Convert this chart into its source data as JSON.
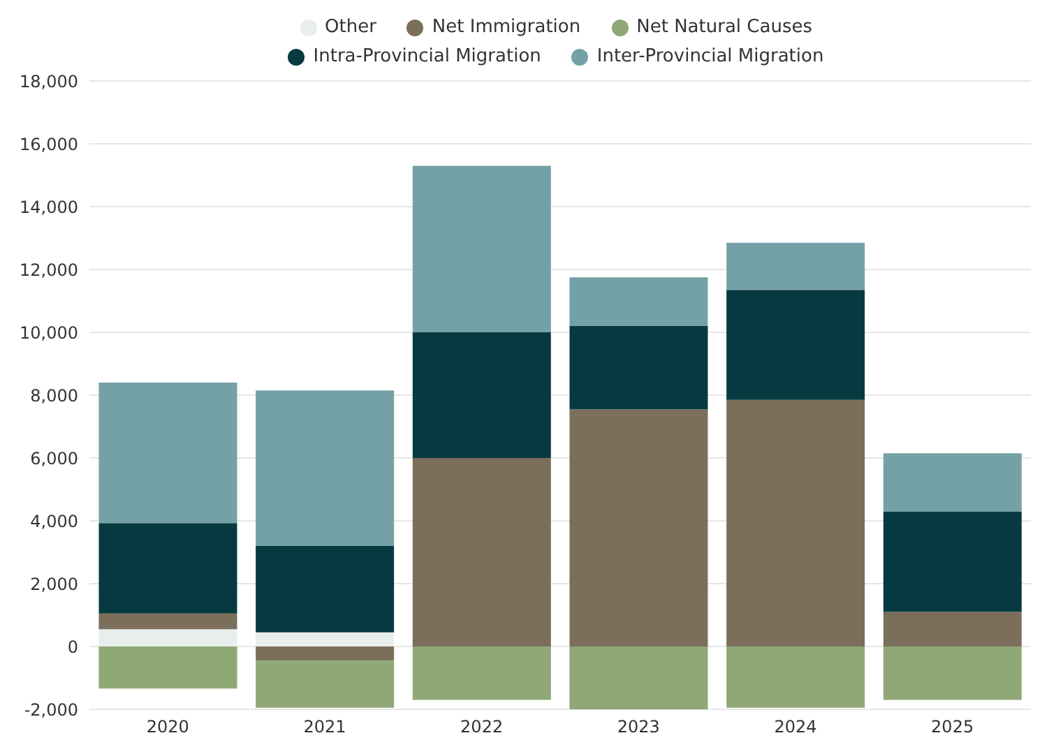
{
  "chart_data": {
    "type": "bar",
    "stacked": true,
    "categories": [
      "2020",
      "2021",
      "2022",
      "2023",
      "2024",
      "2025"
    ],
    "series": [
      {
        "name": "Other",
        "color": "#e8eeec",
        "values": [
          550,
          450,
          0,
          0,
          0,
          0
        ]
      },
      {
        "name": "Net Immigration",
        "color": "#7b6e5a",
        "values": [
          500,
          -450,
          6000,
          7550,
          7850,
          1100
        ]
      },
      {
        "name": "Net Natural Causes",
        "color": "#8fa876",
        "values": [
          -1340,
          -1500,
          -1700,
          -2000,
          -1950,
          -1700
        ]
      },
      {
        "name": "Intra-Provincial Migration",
        "color": "#073a40",
        "values": [
          2880,
          2750,
          4000,
          2650,
          3500,
          3200
        ]
      },
      {
        "name": "Inter-Provincial Migration",
        "color": "#74a1a6",
        "values": [
          4470,
          4950,
          5300,
          1550,
          1500,
          1850
        ]
      }
    ],
    "ylim": [
      -2000,
      18000
    ],
    "yticks": [
      {
        "value": -2000,
        "label": "-2,000"
      },
      0,
      {
        "value": 2000,
        "label": "2,000"
      },
      {
        "value": 4000,
        "label": "4,000"
      },
      {
        "value": 6000,
        "label": "6,000"
      },
      {
        "value": 8000,
        "label": "8,000"
      },
      {
        "value": 10000,
        "label": "10,000"
      },
      {
        "value": 12000,
        "label": "12,000"
      },
      {
        "value": 14000,
        "label": "14,000"
      },
      {
        "value": 16000,
        "label": "16,000"
      },
      {
        "value": 18000,
        "label": "18,000"
      }
    ],
    "grid": "y",
    "legend": "top"
  }
}
